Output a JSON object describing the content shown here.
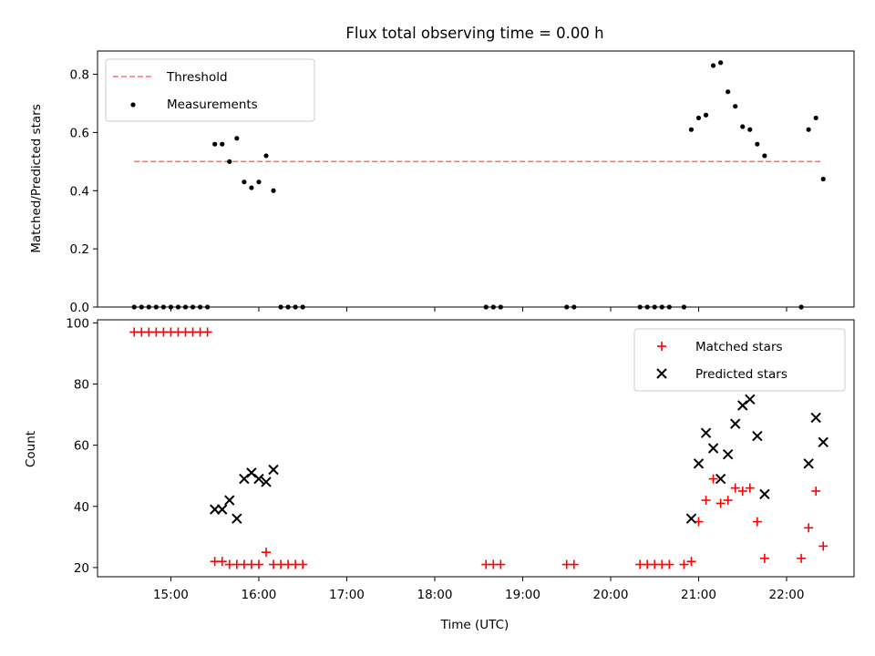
{
  "chart_data": [
    {
      "type": "scatter",
      "title": "Flux total observing time = 0.00 h",
      "xlabel": "",
      "ylabel": "Matched/Predicted stars",
      "xlim": [
        "14:10",
        "22:46"
      ],
      "ylim": [
        0,
        0.88
      ],
      "yticks": [
        0.0,
        0.2,
        0.4,
        0.6,
        0.8
      ],
      "ytick_labels": [
        "0.0",
        "0.2",
        "0.4",
        "0.6",
        "0.8"
      ],
      "xticks": [
        "15:00",
        "16:00",
        "17:00",
        "18:00",
        "19:00",
        "20:00",
        "21:00",
        "22:00"
      ],
      "grid": false,
      "legend_position": "top-left",
      "legend": [
        {
          "label": "Threshold",
          "style": "dashed-line",
          "color": "#ff7070"
        },
        {
          "label": "Measurements",
          "style": "dot",
          "color": "#000000"
        }
      ],
      "threshold": {
        "value": 0.5,
        "x_start": "14:35",
        "x_end": "22:25"
      },
      "series": [
        {
          "name": "Measurements",
          "marker": "dot",
          "color": "#000000",
          "points": [
            [
              "14:35",
              0.0
            ],
            [
              "14:40",
              0.0
            ],
            [
              "14:45",
              0.0
            ],
            [
              "14:50",
              0.0
            ],
            [
              "14:55",
              0.0
            ],
            [
              "15:00",
              0.0
            ],
            [
              "15:05",
              0.0
            ],
            [
              "15:10",
              0.0
            ],
            [
              "15:15",
              0.0
            ],
            [
              "15:20",
              0.0
            ],
            [
              "15:25",
              0.0
            ],
            [
              "15:30",
              0.56
            ],
            [
              "15:35",
              0.56
            ],
            [
              "15:40",
              0.5
            ],
            [
              "15:45",
              0.58
            ],
            [
              "15:50",
              0.43
            ],
            [
              "15:55",
              0.41
            ],
            [
              "16:00",
              0.43
            ],
            [
              "16:05",
              0.52
            ],
            [
              "16:10",
              0.4
            ],
            [
              "16:15",
              0.0
            ],
            [
              "16:20",
              0.0
            ],
            [
              "16:25",
              0.0
            ],
            [
              "16:30",
              0.0
            ],
            [
              "18:35",
              0.0
            ],
            [
              "18:40",
              0.0
            ],
            [
              "18:45",
              0.0
            ],
            [
              "19:30",
              0.0
            ],
            [
              "19:35",
              0.0
            ],
            [
              "20:20",
              0.0
            ],
            [
              "20:25",
              0.0
            ],
            [
              "20:30",
              0.0
            ],
            [
              "20:35",
              0.0
            ],
            [
              "20:40",
              0.0
            ],
            [
              "20:50",
              0.0
            ],
            [
              "20:55",
              0.61
            ],
            [
              "21:00",
              0.65
            ],
            [
              "21:05",
              0.66
            ],
            [
              "21:10",
              0.83
            ],
            [
              "21:15",
              0.84
            ],
            [
              "21:20",
              0.74
            ],
            [
              "21:25",
              0.69
            ],
            [
              "21:30",
              0.62
            ],
            [
              "21:35",
              0.61
            ],
            [
              "21:40",
              0.56
            ],
            [
              "21:45",
              0.52
            ],
            [
              "22:10",
              0.0
            ],
            [
              "22:15",
              0.61
            ],
            [
              "22:20",
              0.65
            ],
            [
              "22:25",
              0.44
            ]
          ]
        }
      ]
    },
    {
      "type": "scatter",
      "title": "",
      "xlabel": "Time (UTC)",
      "ylabel": "Count",
      "xlim": [
        "14:10",
        "22:46"
      ],
      "ylim": [
        17,
        101
      ],
      "yticks": [
        20,
        40,
        60,
        80,
        100
      ],
      "ytick_labels": [
        "20",
        "40",
        "60",
        "80",
        "100"
      ],
      "xticks": [
        "15:00",
        "16:00",
        "17:00",
        "18:00",
        "19:00",
        "20:00",
        "21:00",
        "22:00"
      ],
      "grid": false,
      "legend_position": "top-right",
      "series": [
        {
          "name": "Matched stars",
          "marker": "plus",
          "color": "#ff0000",
          "points": [
            [
              "14:35",
              97
            ],
            [
              "14:40",
              97
            ],
            [
              "14:45",
              97
            ],
            [
              "14:50",
              97
            ],
            [
              "14:55",
              97
            ],
            [
              "15:00",
              97
            ],
            [
              "15:05",
              97
            ],
            [
              "15:10",
              97
            ],
            [
              "15:15",
              97
            ],
            [
              "15:20",
              97
            ],
            [
              "15:25",
              97
            ],
            [
              "15:30",
              22
            ],
            [
              "15:35",
              22
            ],
            [
              "15:40",
              21
            ],
            [
              "15:45",
              21
            ],
            [
              "15:50",
              21
            ],
            [
              "15:55",
              21
            ],
            [
              "16:00",
              21
            ],
            [
              "16:05",
              25
            ],
            [
              "16:10",
              21
            ],
            [
              "16:15",
              21
            ],
            [
              "16:20",
              21
            ],
            [
              "16:25",
              21
            ],
            [
              "16:30",
              21
            ],
            [
              "18:35",
              21
            ],
            [
              "18:40",
              21
            ],
            [
              "18:45",
              21
            ],
            [
              "19:30",
              21
            ],
            [
              "19:35",
              21
            ],
            [
              "20:20",
              21
            ],
            [
              "20:25",
              21
            ],
            [
              "20:30",
              21
            ],
            [
              "20:35",
              21
            ],
            [
              "20:40",
              21
            ],
            [
              "20:50",
              21
            ],
            [
              "20:55",
              22
            ],
            [
              "21:00",
              35
            ],
            [
              "21:05",
              42
            ],
            [
              "21:10",
              49
            ],
            [
              "21:15",
              41
            ],
            [
              "21:20",
              42
            ],
            [
              "21:25",
              46
            ],
            [
              "21:30",
              45
            ],
            [
              "21:35",
              46
            ],
            [
              "21:40",
              35
            ],
            [
              "21:45",
              23
            ],
            [
              "22:10",
              23
            ],
            [
              "22:15",
              33
            ],
            [
              "22:20",
              45
            ],
            [
              "22:25",
              27
            ]
          ]
        },
        {
          "name": "Predicted stars",
          "marker": "x",
          "color": "#000000",
          "points": [
            [
              "15:30",
              39
            ],
            [
              "15:35",
              39
            ],
            [
              "15:40",
              42
            ],
            [
              "15:45",
              36
            ],
            [
              "15:50",
              49
            ],
            [
              "15:55",
              51
            ],
            [
              "16:00",
              49
            ],
            [
              "16:05",
              48
            ],
            [
              "16:10",
              52
            ],
            [
              "20:55",
              36
            ],
            [
              "21:00",
              54
            ],
            [
              "21:05",
              64
            ],
            [
              "21:10",
              59
            ],
            [
              "21:15",
              49
            ],
            [
              "21:20",
              57
            ],
            [
              "21:25",
              67
            ],
            [
              "21:30",
              73
            ],
            [
              "21:35",
              75
            ],
            [
              "21:40",
              63
            ],
            [
              "21:45",
              44
            ],
            [
              "22:15",
              54
            ],
            [
              "22:20",
              69
            ],
            [
              "22:25",
              61
            ]
          ]
        }
      ]
    }
  ]
}
